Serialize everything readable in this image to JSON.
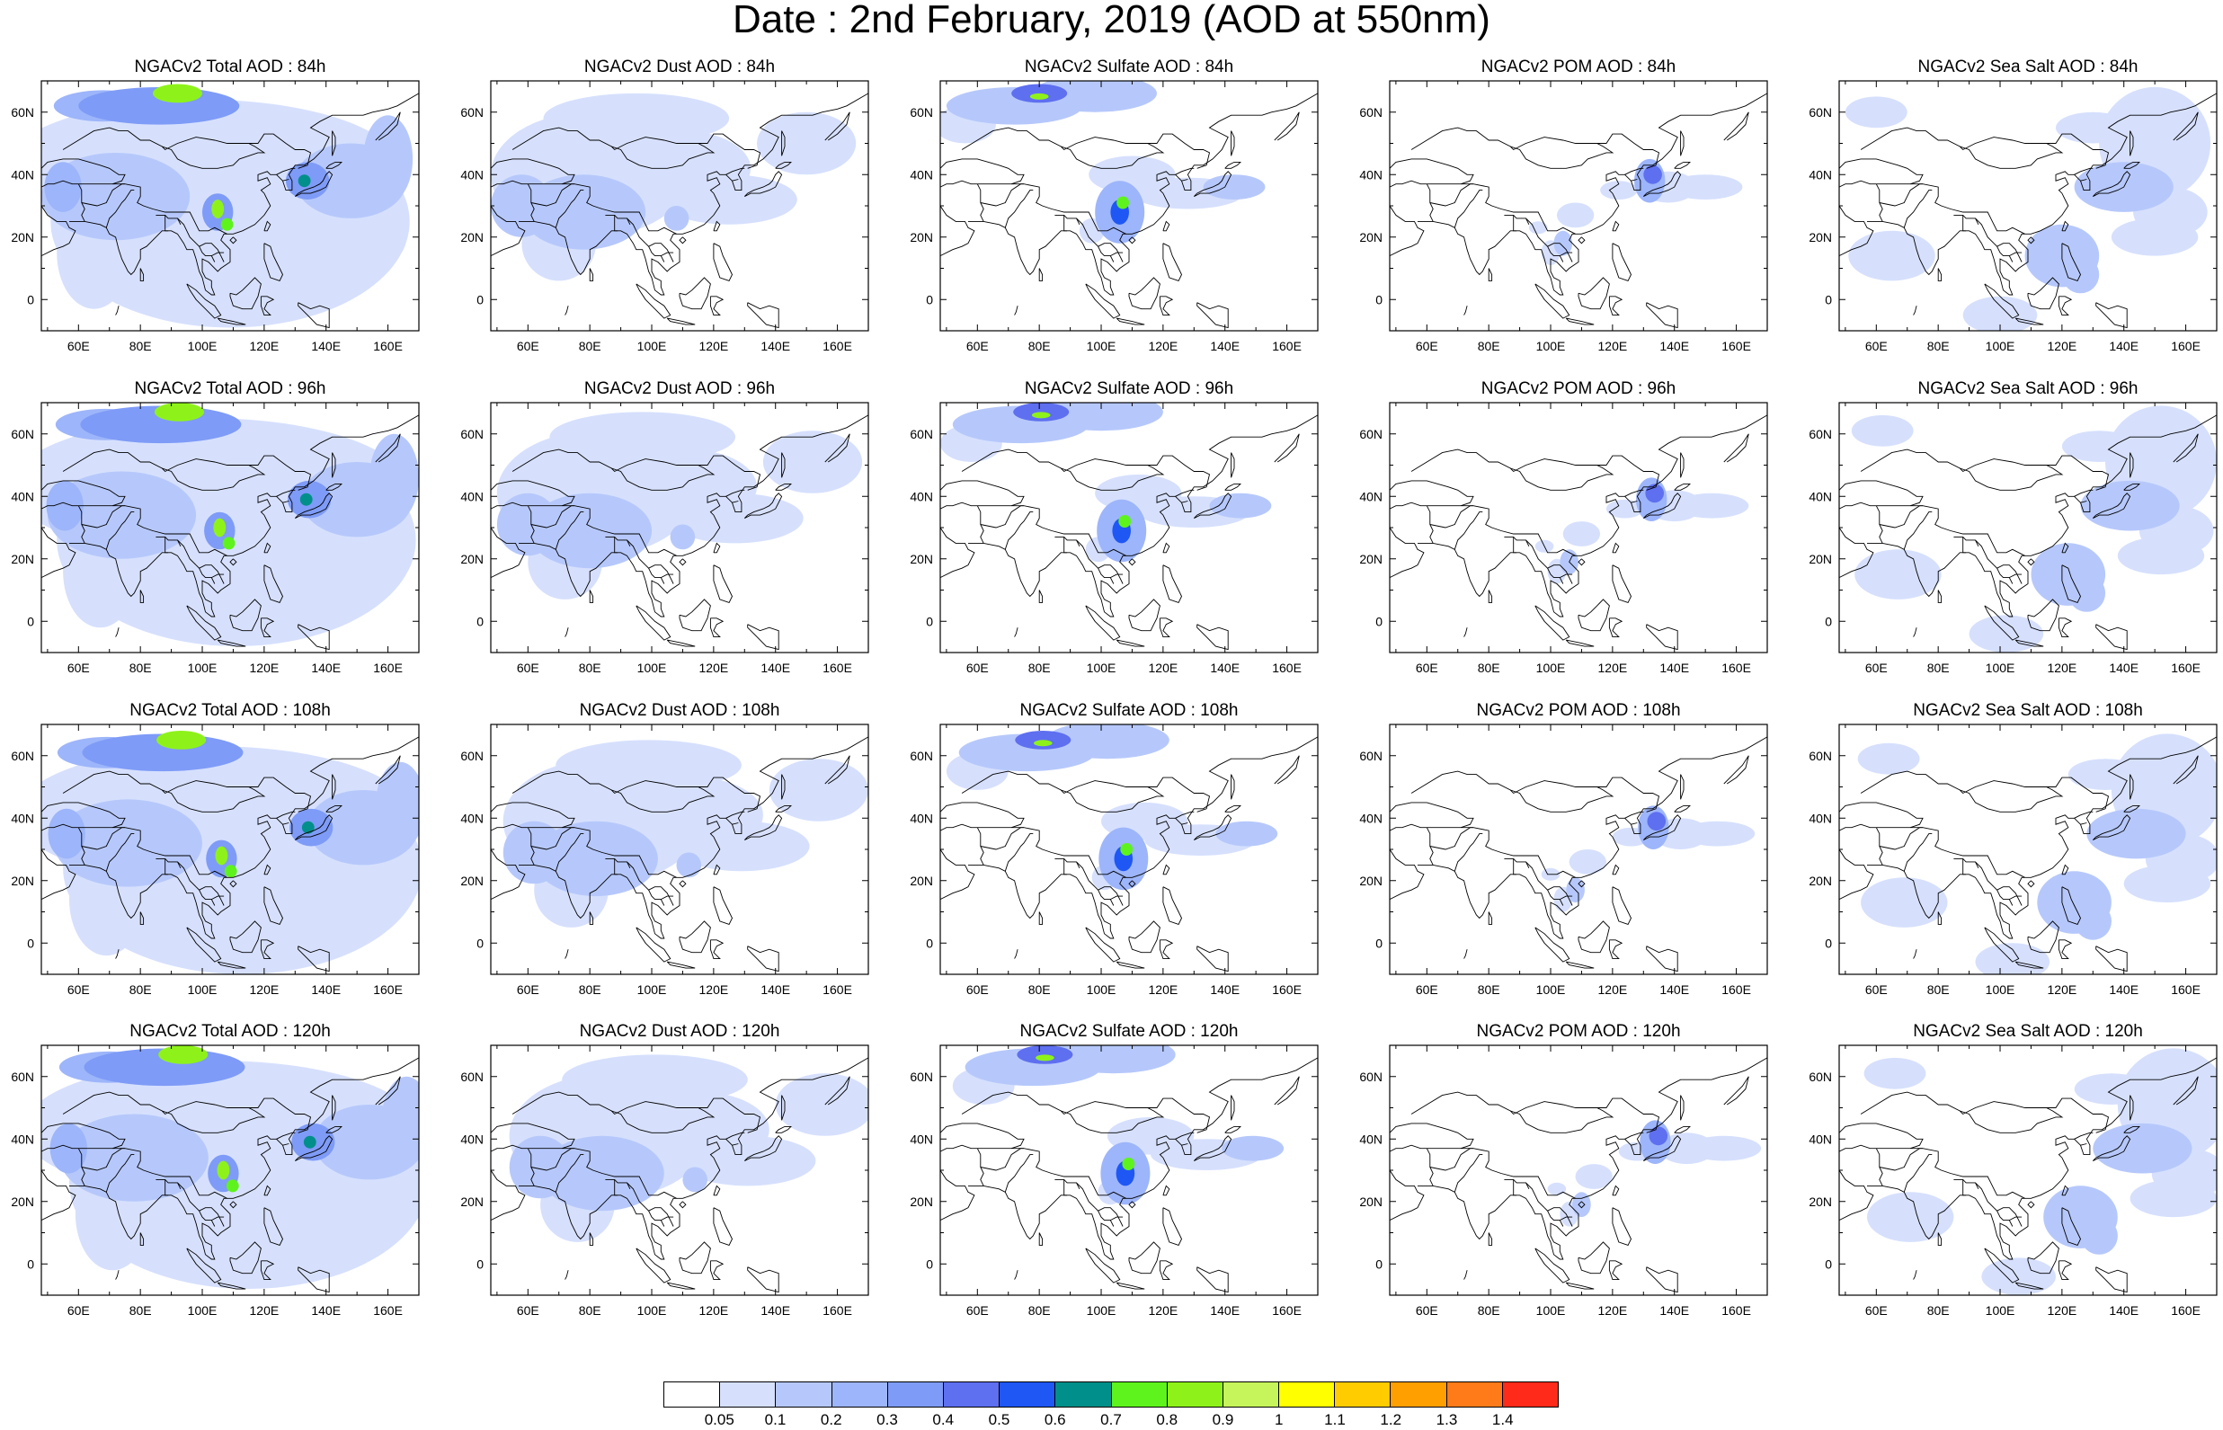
{
  "title": "Date : 2nd February, 2019 (AOD at 550nm)",
  "map": {
    "lon_range": [
      48,
      170
    ],
    "lat_range": [
      -10,
      70
    ],
    "lon_ticks": [
      "60E",
      "80E",
      "100E",
      "120E",
      "140E",
      "160E"
    ],
    "lat_ticks": [
      "60N",
      "40N",
      "20N",
      "0"
    ]
  },
  "panels": [
    [
      {
        "title": "NGACv2 Total AOD : 84h",
        "species": "total",
        "hour": 84
      },
      {
        "title": "NGACv2 Dust AOD : 84h",
        "species": "dust",
        "hour": 84
      },
      {
        "title": "NGACv2 Sulfate AOD : 84h",
        "species": "sulfate",
        "hour": 84
      },
      {
        "title": "NGACv2 POM AOD : 84h",
        "species": "pom",
        "hour": 84
      },
      {
        "title": "NGACv2 Sea Salt AOD : 84h",
        "species": "seasalt",
        "hour": 84
      }
    ],
    [
      {
        "title": "NGACv2 Total AOD : 96h",
        "species": "total",
        "hour": 96
      },
      {
        "title": "NGACv2 Dust AOD : 96h",
        "species": "dust",
        "hour": 96
      },
      {
        "title": "NGACv2 Sulfate AOD : 96h",
        "species": "sulfate",
        "hour": 96
      },
      {
        "title": "NGACv2 POM AOD : 96h",
        "species": "pom",
        "hour": 96
      },
      {
        "title": "NGACv2 Sea Salt AOD : 96h",
        "species": "seasalt",
        "hour": 96
      }
    ],
    [
      {
        "title": "NGACv2 Total AOD : 108h",
        "species": "total",
        "hour": 108
      },
      {
        "title": "NGACv2 Dust AOD : 108h",
        "species": "dust",
        "hour": 108
      },
      {
        "title": "NGACv2 Sulfate AOD : 108h",
        "species": "sulfate",
        "hour": 108
      },
      {
        "title": "NGACv2 POM AOD : 108h",
        "species": "pom",
        "hour": 108
      },
      {
        "title": "NGACv2 Sea Salt AOD : 108h",
        "species": "seasalt",
        "hour": 108
      }
    ],
    [
      {
        "title": "NGACv2 Total AOD : 120h",
        "species": "total",
        "hour": 120
      },
      {
        "title": "NGACv2 Dust AOD : 120h",
        "species": "dust",
        "hour": 120
      },
      {
        "title": "NGACv2 Sulfate AOD : 120h",
        "species": "sulfate",
        "hour": 120
      },
      {
        "title": "NGACv2 POM AOD : 120h",
        "species": "pom",
        "hour": 120
      },
      {
        "title": "NGACv2 Sea Salt  AOD : 120h",
        "species": "seasalt",
        "hour": 120
      }
    ]
  ],
  "colorbar": {
    "colors": [
      "#ffffff",
      "#d6e0fd",
      "#b6c8fb",
      "#9db5fa",
      "#7e9bf7",
      "#5e6ff0",
      "#1f57f5",
      "#008f8a",
      "#5ef31c",
      "#8ef21a",
      "#c5f55a",
      "#ffff00",
      "#ffcc00",
      "#ff9f00",
      "#ff7b1a",
      "#ff2a1a"
    ],
    "labels": [
      "0.05",
      "0.1",
      "0.2",
      "0.3",
      "0.4",
      "0.5",
      "0.6",
      "0.7",
      "0.8",
      "0.9",
      "1",
      "1.1",
      "1.2",
      "1.3",
      "1.4"
    ]
  }
}
